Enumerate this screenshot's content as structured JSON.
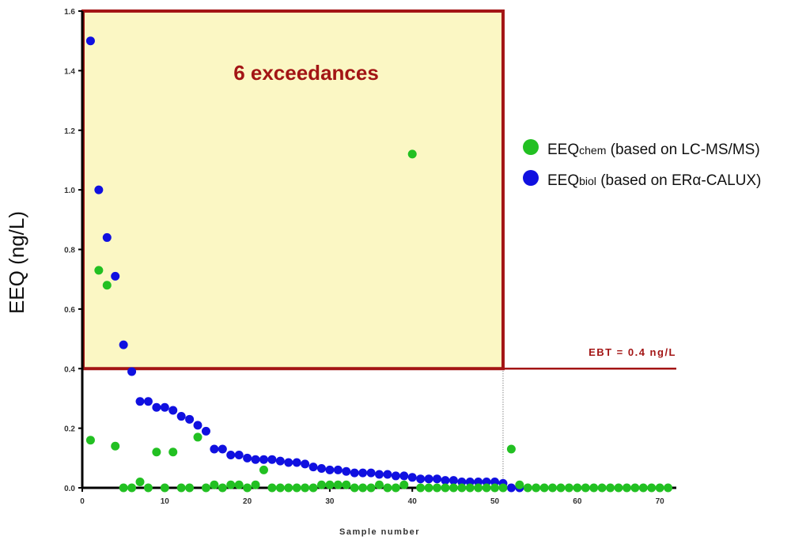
{
  "chart_data": {
    "type": "scatter",
    "xlabel": "Sample number",
    "ylabel": "EEQ (ng/L)",
    "xlim": [
      0,
      72
    ],
    "ylim": [
      0,
      1.6
    ],
    "xticks": [
      "0",
      "10",
      "20",
      "30",
      "40",
      "50",
      "60",
      "70"
    ],
    "yticks": [
      "0.0",
      "0.2",
      "0.4",
      "0.6",
      "0.8",
      "1.0",
      "1.2",
      "1.4",
      "1.6"
    ],
    "annotation": "6 exceedances",
    "threshold": {
      "label": "EBT = 0.4 ng/L",
      "value": 0.4
    },
    "colors": {
      "chem": "#22c022",
      "biol": "#1010e0",
      "threshold": "#a31515",
      "box_fill": "#fbf7c4"
    },
    "series": [
      {
        "name": "EEQbiol (based on ERα-CALUX)",
        "name_main": "EEQ",
        "name_sub": "biol",
        "name_rest": " (based on ERα-CALUX)",
        "x": [
          1,
          2,
          3,
          4,
          5,
          6,
          7,
          8,
          9,
          10,
          11,
          12,
          13,
          14,
          15,
          16,
          17,
          18,
          19,
          20,
          21,
          22,
          23,
          24,
          25,
          26,
          27,
          28,
          29,
          30,
          31,
          32,
          33,
          34,
          35,
          36,
          37,
          38,
          39,
          40,
          41,
          42,
          43,
          44,
          45,
          46,
          47,
          48,
          49,
          50,
          51,
          52,
          53
        ],
        "y": [
          1.5,
          1.0,
          0.84,
          0.71,
          0.48,
          0.39,
          0.29,
          0.29,
          0.27,
          0.27,
          0.26,
          0.24,
          0.23,
          0.21,
          0.19,
          0.13,
          0.13,
          0.11,
          0.11,
          0.1,
          0.095,
          0.095,
          0.095,
          0.09,
          0.085,
          0.085,
          0.08,
          0.07,
          0.065,
          0.06,
          0.06,
          0.055,
          0.05,
          0.05,
          0.05,
          0.045,
          0.045,
          0.04,
          0.04,
          0.035,
          0.03,
          0.03,
          0.03,
          0.025,
          0.025,
          0.02,
          0.02,
          0.02,
          0.02,
          0.02,
          0.015,
          0.0,
          0.0
        ]
      },
      {
        "name": "EEQchem (based on LC-MS/MS)",
        "name_main": "EEQ",
        "name_sub": "chem",
        "name_rest": " (based on LC-MS/MS)",
        "x": [
          1,
          2,
          3,
          4,
          5,
          6,
          7,
          8,
          9,
          10,
          11,
          12,
          13,
          14,
          15,
          16,
          17,
          18,
          19,
          20,
          21,
          22,
          23,
          24,
          25,
          26,
          27,
          28,
          29,
          30,
          31,
          32,
          33,
          34,
          35,
          36,
          37,
          38,
          39,
          40,
          41,
          42,
          43,
          44,
          45,
          46,
          47,
          48,
          49,
          50,
          51,
          52,
          53,
          54,
          55,
          56,
          57,
          58,
          59,
          60,
          61,
          62,
          63,
          64,
          65,
          66,
          67,
          68,
          69,
          70,
          71
        ],
        "y": [
          0.16,
          0.73,
          0.68,
          0.14,
          0.0,
          0.0,
          0.02,
          0.0,
          0.12,
          0.0,
          0.12,
          0.0,
          0.0,
          0.17,
          0.0,
          0.01,
          0.0,
          0.01,
          0.01,
          0.0,
          0.01,
          0.06,
          0.0,
          0.0,
          0.0,
          0.0,
          0.0,
          0.0,
          0.01,
          0.01,
          0.01,
          0.01,
          0.0,
          0.0,
          0.0,
          0.01,
          0.0,
          0.0,
          0.01,
          1.12,
          0.0,
          0.0,
          0.0,
          0.0,
          0.0,
          0.0,
          0.0,
          0.0,
          0.0,
          0.0,
          0.0,
          0.13,
          0.01,
          0.0,
          0.0,
          0.0,
          0.0,
          0.0,
          0.0,
          0.0,
          0.0,
          0.0,
          0.0,
          0.0,
          0.0,
          0.0,
          0.0,
          0.0,
          0.0,
          0.0,
          0.0
        ]
      }
    ]
  }
}
